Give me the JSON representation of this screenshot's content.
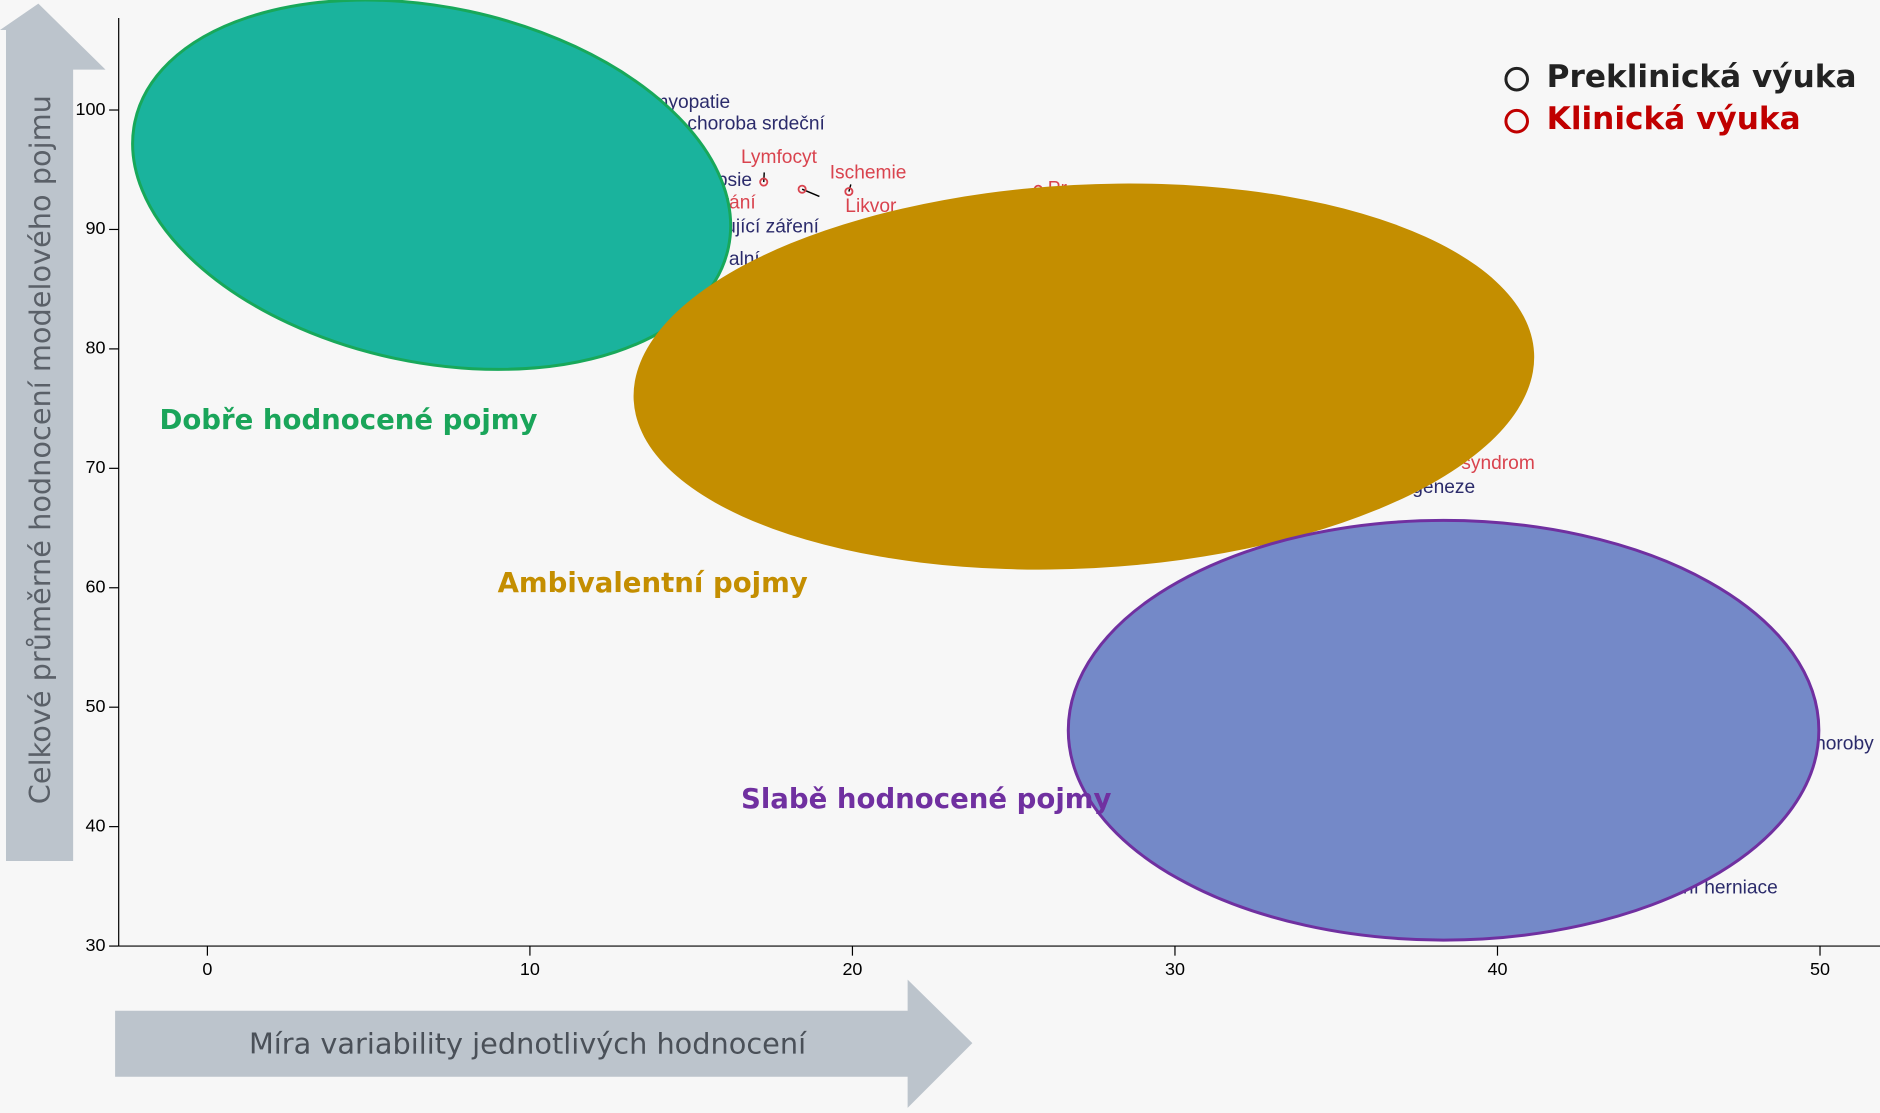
{
  "chart_data": {
    "type": "scatter",
    "x_label": "Míra variability jednotlivých hodnocení",
    "y_label": "Celkové průměrné hodnocení modelového pojmu",
    "xlim": [
      -2.75,
      51.86
    ],
    "ylim": [
      30,
      107.7
    ],
    "xticks": [
      0,
      10,
      20,
      30,
      40,
      50
    ],
    "yticks": [
      30,
      40,
      50,
      60,
      70,
      80,
      90,
      100
    ],
    "legend": "top-right",
    "series": [
      {
        "name": "Preklinická výuka",
        "color": "#222222",
        "label_color": "#2b2b6b",
        "x": [
          13.5,
          14.09,
          15.5,
          15.46,
          15.87,
          37.06,
          49.55,
          45.32
        ],
        "values": [
          100.6,
          98.8,
          94.07,
          90.16,
          87.45,
          68.36,
          46.87,
          34.82
        ],
        "labels": [
          "myopatie",
          "á choroba srdeční",
          "psie",
          "zující záření",
          "alní",
          "geneze",
          "horoby",
          "lní herniace"
        ]
      },
      {
        "name": "Klinická výuka",
        "color": "#c00000",
        "label_color": "#d9434e",
        "x": [
          17.25,
          19.89,
          18.44,
          15.58,
          25.76,
          38.25
        ],
        "values": [
          93.97,
          93.17,
          93.37,
          92.17,
          93.37,
          70.37
        ],
        "labels": [
          "Lymfocyt",
          "Ischemie",
          "Likvor",
          "vání",
          "Pr",
          "í syndrom"
        ]
      }
    ],
    "clusters": [
      {
        "label": "Dobře hodnocené pojmy",
        "color": "#1ab39d",
        "text_color": "#1aa55a"
      },
      {
        "label": "Ambivalentní pojmy",
        "color": "#c48e00",
        "text_color": "#c48e00"
      },
      {
        "label": "Slabě hodnocené pojmy",
        "color": "#7489c8",
        "text_color": "#7030a0"
      }
    ]
  }
}
